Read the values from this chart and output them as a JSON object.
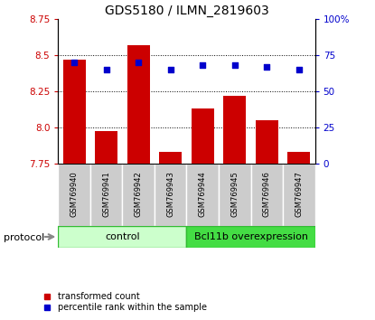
{
  "title": "GDS5180 / ILMN_2819603",
  "samples": [
    "GSM769940",
    "GSM769941",
    "GSM769942",
    "GSM769943",
    "GSM769944",
    "GSM769945",
    "GSM769946",
    "GSM769947"
  ],
  "transformed_count": [
    8.47,
    7.97,
    8.57,
    7.83,
    8.13,
    8.22,
    8.05,
    7.83
  ],
  "percentile_rank": [
    70,
    65,
    70,
    65,
    68,
    68,
    67,
    65
  ],
  "ylim_left": [
    7.75,
    8.75
  ],
  "ylim_right": [
    0,
    100
  ],
  "yticks_left": [
    7.75,
    8.0,
    8.25,
    8.5,
    8.75
  ],
  "yticks_right": [
    0,
    25,
    50,
    75,
    100
  ],
  "bar_color": "#cc0000",
  "dot_color": "#0000cc",
  "bar_bottom": 7.75,
  "control_color_light": "#ccffcc",
  "control_color_dark": "#44dd44",
  "legend_bar_label": "transformed count",
  "legend_dot_label": "percentile rank within the sample",
  "title_fontsize": 10,
  "tick_fontsize": 7.5,
  "label_fontsize": 8
}
